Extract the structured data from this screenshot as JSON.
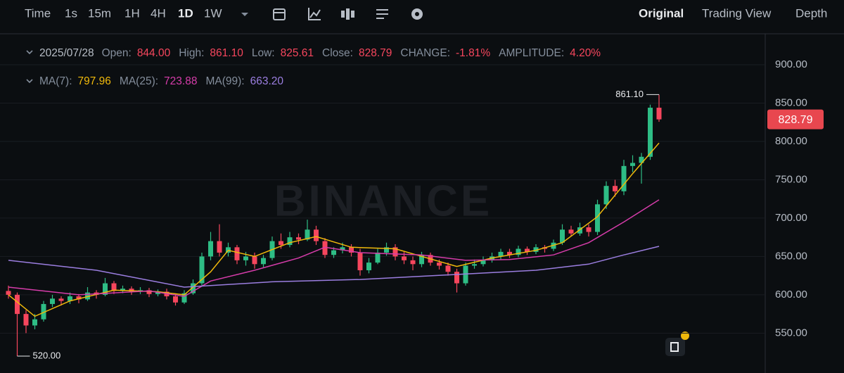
{
  "toolbar": {
    "intervals": [
      "Time",
      "1s",
      "15m",
      "1H",
      "4H",
      "1D",
      "1W"
    ],
    "active": "1D",
    "views": [
      "Original",
      "Trading View",
      "Depth"
    ],
    "active_view": "Original"
  },
  "info": {
    "date": "2025/07/28",
    "fields": [
      {
        "label": "Open:",
        "value": "844.00"
      },
      {
        "label": "High:",
        "value": "861.10"
      },
      {
        "label": "Low:",
        "value": "825.61"
      },
      {
        "label": "Close:",
        "value": "828.79"
      },
      {
        "label": "CHANGE:",
        "value": "-1.81%"
      },
      {
        "label": "AMPLITUDE:",
        "value": "4.20%"
      }
    ]
  },
  "watermark": "BINANCE",
  "chart_data": {
    "type": "candlestick",
    "colors": {
      "up": "#2ebd85",
      "down": "#f6465d"
    },
    "ohlc": [
      [
        605,
        612,
        595,
        600
      ],
      [
        600,
        603,
        520,
        575
      ],
      [
        575,
        580,
        550,
        560
      ],
      [
        560,
        575,
        555,
        568
      ],
      [
        568,
        592,
        565,
        588
      ],
      [
        588,
        600,
        584,
        595
      ],
      [
        595,
        598,
        586,
        592
      ],
      [
        592,
        603,
        588,
        598
      ],
      [
        598,
        601,
        589,
        594
      ],
      [
        594,
        610,
        592,
        603
      ],
      [
        603,
        606,
        595,
        600
      ],
      [
        600,
        622,
        598,
        615
      ],
      [
        615,
        618,
        601,
        605
      ],
      [
        605,
        612,
        602,
        608
      ],
      [
        608,
        611,
        600,
        604
      ],
      [
        604,
        610,
        601,
        606
      ],
      [
        606,
        609,
        597,
        601
      ],
      [
        601,
        607,
        598,
        604
      ],
      [
        604,
        608,
        594,
        598
      ],
      [
        598,
        601,
        586,
        590
      ],
      [
        590,
        606,
        588,
        602
      ],
      [
        602,
        620,
        600,
        615
      ],
      [
        615,
        655,
        612,
        650
      ],
      [
        650,
        682,
        645,
        670
      ],
      [
        670,
        692,
        650,
        655
      ],
      [
        655,
        668,
        650,
        662
      ],
      [
        662,
        665,
        640,
        645
      ],
      [
        645,
        656,
        638,
        650
      ],
      [
        650,
        655,
        634,
        640
      ],
      [
        640,
        652,
        636,
        648
      ],
      [
        648,
        676,
        645,
        670
      ],
      [
        670,
        680,
        660,
        665
      ],
      [
        665,
        682,
        662,
        675
      ],
      [
        675,
        680,
        666,
        672
      ],
      [
        672,
        698,
        670,
        685
      ],
      [
        685,
        690,
        665,
        670
      ],
      [
        670,
        674,
        648,
        652
      ],
      [
        652,
        662,
        648,
        658
      ],
      [
        658,
        668,
        654,
        662
      ],
      [
        662,
        666,
        650,
        655
      ],
      [
        655,
        660,
        625,
        632
      ],
      [
        632,
        648,
        628,
        642
      ],
      [
        642,
        660,
        640,
        655
      ],
      [
        655,
        668,
        651,
        662
      ],
      [
        662,
        666,
        645,
        650
      ],
      [
        650,
        656,
        640,
        645
      ],
      [
        645,
        650,
        632,
        640
      ],
      [
        640,
        656,
        636,
        652
      ],
      [
        652,
        655,
        638,
        642
      ],
      [
        642,
        646,
        633,
        638
      ],
      [
        638,
        642,
        625,
        630
      ],
      [
        630,
        634,
        603,
        615
      ],
      [
        615,
        642,
        612,
        638
      ],
      [
        638,
        646,
        634,
        640
      ],
      [
        640,
        650,
        637,
        645
      ],
      [
        645,
        655,
        642,
        650
      ],
      [
        650,
        660,
        646,
        656
      ],
      [
        656,
        660,
        648,
        652
      ],
      [
        652,
        664,
        649,
        660
      ],
      [
        660,
        663,
        652,
        656
      ],
      [
        656,
        666,
        653,
        662
      ],
      [
        662,
        665,
        655,
        660
      ],
      [
        660,
        672,
        657,
        668
      ],
      [
        668,
        692,
        665,
        685
      ],
      [
        685,
        690,
        676,
        680
      ],
      [
        680,
        694,
        677,
        688
      ],
      [
        688,
        692,
        676,
        682
      ],
      [
        682,
        724,
        678,
        718
      ],
      [
        718,
        748,
        712,
        742
      ],
      [
        742,
        750,
        728,
        735
      ],
      [
        735,
        776,
        730,
        768
      ],
      [
        768,
        782,
        760,
        772
      ],
      [
        772,
        785,
        745,
        780
      ],
      [
        780,
        848,
        776,
        844
      ],
      [
        844,
        861.1,
        825.61,
        828.79
      ]
    ],
    "max_label": "861.10",
    "min_label": "520.00",
    "last_price_label": "828.79",
    "ylim": [
      498,
      934
    ],
    "yticks": [
      {
        "value": 550,
        "label": "550.00"
      },
      {
        "value": 600,
        "label": "600.00"
      },
      {
        "value": 650,
        "label": "650.00"
      },
      {
        "value": 700,
        "label": "700.00"
      },
      {
        "value": 750,
        "label": "750.00"
      },
      {
        "value": 800,
        "label": "800.00"
      },
      {
        "value": 850,
        "label": "850.00"
      },
      {
        "value": 900,
        "label": "900.00"
      }
    ],
    "series": [
      {
        "name": "MA(7):",
        "value_label": "797.96",
        "color": "#f0b90b",
        "x": [
          0,
          3,
          7,
          12,
          17,
          20,
          23,
          25,
          28,
          32,
          35,
          39,
          44,
          51,
          55,
          60,
          63,
          67,
          71,
          74
        ],
        "values": [
          600,
          572,
          592,
          606,
          604,
          600,
          630,
          658,
          650,
          668,
          676,
          662,
          660,
          637,
          648,
          658,
          668,
          702,
          758,
          797.96
        ]
      },
      {
        "name": "MA(25):",
        "value_label": "723.88",
        "color": "#d63caa",
        "x": [
          0,
          8,
          16,
          20,
          23,
          28,
          33,
          36,
          40,
          47,
          52,
          57,
          62,
          66,
          70,
          74
        ],
        "values": [
          610,
          600,
          605,
          598,
          618,
          632,
          648,
          662,
          655,
          652,
          645,
          646,
          652,
          668,
          695,
          723.88
        ]
      },
      {
        "name": "MA(99):",
        "value_label": "663.20",
        "color": "#9b7ee0",
        "x": [
          0,
          10,
          20,
          30,
          40,
          50,
          60,
          66,
          70,
          74
        ],
        "values": [
          645,
          632,
          610,
          617,
          620,
          626,
          632,
          640,
          652,
          663.2
        ]
      }
    ]
  }
}
